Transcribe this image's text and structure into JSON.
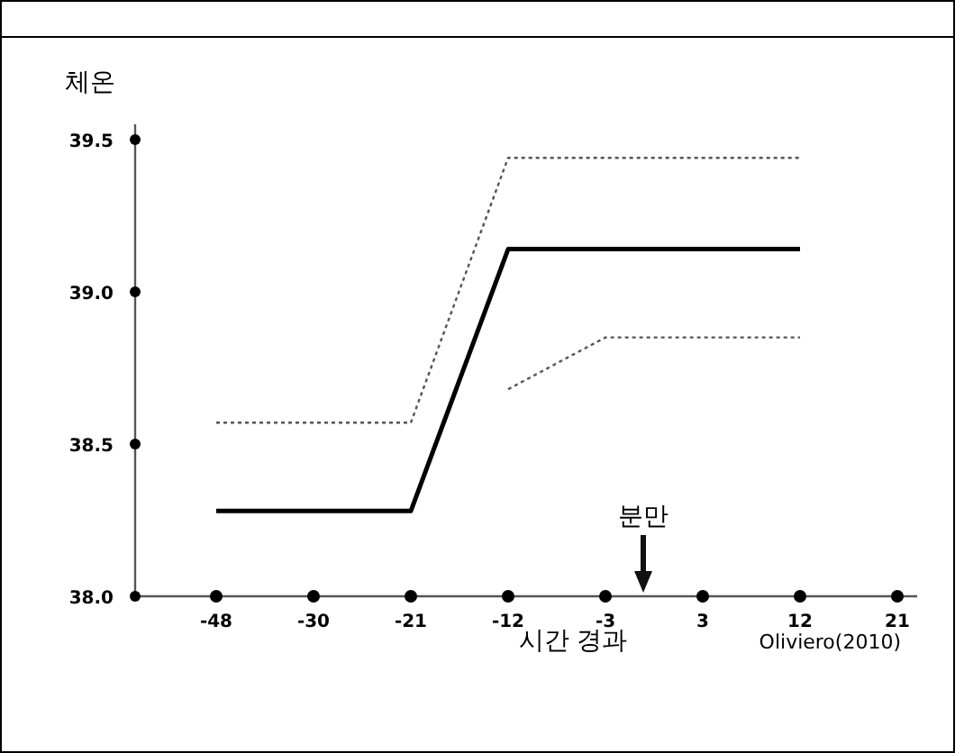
{
  "chart_data": {
    "type": "line",
    "ylabel": "체온",
    "xlabel": "시간 경과",
    "marker": "none",
    "grid": false,
    "categories": [
      "-48",
      "-30",
      "-21",
      "-12",
      "-3",
      "3",
      "12",
      "21"
    ],
    "ylim": [
      38.0,
      39.55
    ],
    "yticks": [
      {
        "value": 38.0,
        "label": "38.0"
      },
      {
        "value": 38.5,
        "label": "38.5"
      },
      {
        "value": 39.0,
        "label": "39.0"
      },
      {
        "value": 39.5,
        "label": "39.5"
      }
    ],
    "series": [
      {
        "color": "#000000",
        "line_style": "solid",
        "values": [
          38.28,
          38.28,
          38.28,
          39.14,
          39.14,
          39.14,
          39.14,
          null
        ]
      },
      {
        "color": "#555555",
        "line_style": "dotted",
        "values": [
          38.57,
          38.57,
          38.57,
          39.44,
          39.44,
          39.44,
          39.44,
          null
        ]
      },
      {
        "color": "#555555",
        "line_style": "dotted",
        "values": [
          null,
          null,
          null,
          38.68,
          38.85,
          38.85,
          38.85,
          null
        ]
      }
    ],
    "annotations": [
      "분만",
      "Oliviero(2010)"
    ]
  }
}
